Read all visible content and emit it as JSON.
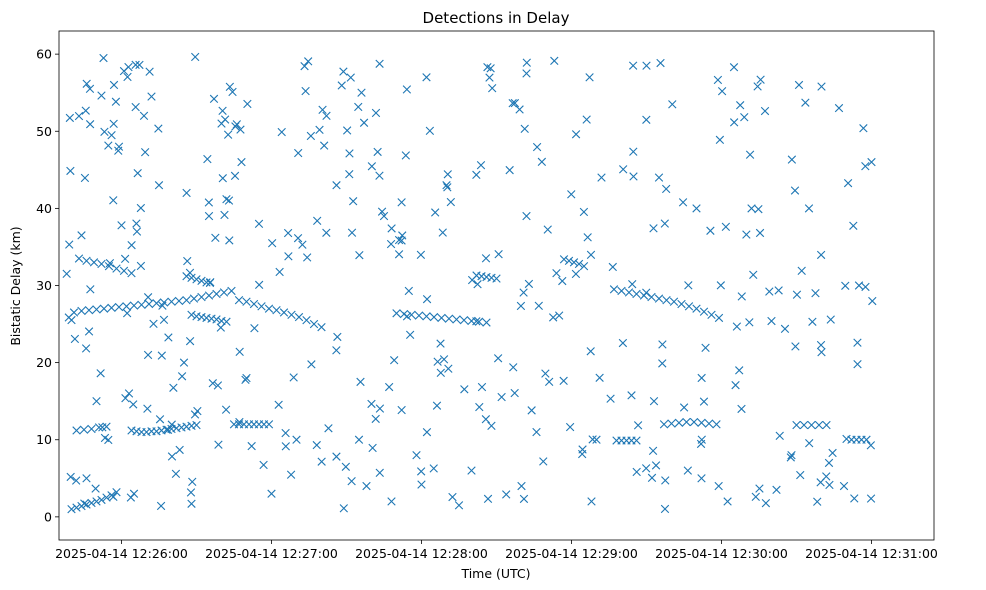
{
  "chart_data": {
    "type": "scatter",
    "title": "Detections in Delay",
    "xlabel": "Time (UTC)",
    "ylabel": "Bistatic Delay (km)",
    "x_unit": "seconds since 2025-04-14 12:26:00",
    "xlim": [
      -25,
      325
    ],
    "ylim": [
      -3,
      63
    ],
    "x_ticks": [
      {
        "value": 0,
        "label": "2025-04-14 12:26:00"
      },
      {
        "value": 60,
        "label": "2025-04-14 12:27:00"
      },
      {
        "value": 120,
        "label": "2025-04-14 12:28:00"
      },
      {
        "value": 180,
        "label": "2025-04-14 12:29:00"
      },
      {
        "value": 240,
        "label": "2025-04-14 12:30:00"
      },
      {
        "value": 300,
        "label": "2025-04-14 12:31:00"
      }
    ],
    "y_ticks": [
      {
        "value": 0,
        "label": "0"
      },
      {
        "value": 10,
        "label": "10"
      },
      {
        "value": 20,
        "label": "20"
      },
      {
        "value": 30,
        "label": "30"
      },
      {
        "value": 40,
        "label": "40"
      },
      {
        "value": 50,
        "label": "50"
      },
      {
        "value": 60,
        "label": "60"
      }
    ],
    "marker": "x",
    "color": "#1f77b4",
    "grid": false,
    "tracks": [
      {
        "name": "track-a",
        "points": [
          [
            -19,
            26.5
          ],
          [
            -16,
            26.7
          ],
          [
            -13,
            26.8
          ],
          [
            -10,
            26.9
          ],
          [
            -7,
            27.0
          ],
          [
            -4,
            27.1
          ],
          [
            -1,
            27.2
          ],
          [
            2,
            27.3
          ],
          [
            5,
            27.4
          ],
          [
            8,
            27.5
          ],
          [
            11,
            27.6
          ],
          [
            14,
            27.7
          ],
          [
            17,
            27.8
          ],
          [
            20,
            27.9
          ],
          [
            23,
            28.0
          ],
          [
            26,
            28.1
          ],
          [
            29,
            28.3
          ],
          [
            32,
            28.5
          ],
          [
            35,
            28.7
          ],
          [
            38,
            28.9
          ],
          [
            41,
            29.1
          ],
          [
            44,
            29.3
          ]
        ]
      },
      {
        "name": "track-b",
        "points": [
          [
            26,
            31.2
          ],
          [
            28,
            31.0
          ],
          [
            30,
            30.8
          ],
          [
            32,
            30.6
          ],
          [
            34,
            30.4
          ]
        ]
      },
      {
        "name": "track-c",
        "points": [
          [
            -17,
            33.5
          ],
          [
            -14,
            33.2
          ],
          [
            -11,
            33.0
          ],
          [
            -8,
            32.8
          ],
          [
            -5,
            32.5
          ],
          [
            -2,
            32.2
          ],
          [
            1,
            31.9
          ],
          [
            4,
            31.6
          ]
        ]
      },
      {
        "name": "track-d",
        "points": [
          [
            28,
            26.2
          ],
          [
            30,
            26.0
          ],
          [
            32,
            25.9
          ],
          [
            34,
            25.8
          ],
          [
            36,
            25.7
          ],
          [
            38,
            25.6
          ],
          [
            40,
            25.4
          ],
          [
            42,
            25.3
          ]
        ]
      },
      {
        "name": "track-e",
        "points": [
          [
            47,
            28.1
          ],
          [
            50,
            27.9
          ],
          [
            53,
            27.6
          ],
          [
            56,
            27.3
          ],
          [
            59,
            27.0
          ],
          [
            62,
            26.8
          ],
          [
            65,
            26.5
          ],
          [
            68,
            26.2
          ],
          [
            71,
            25.9
          ],
          [
            74,
            25.5
          ],
          [
            77,
            25.0
          ],
          [
            80,
            24.6
          ]
        ]
      },
      {
        "name": "track-f",
        "points": [
          [
            110,
            26.4
          ],
          [
            113,
            26.3
          ],
          [
            116,
            26.2
          ],
          [
            119,
            26.1
          ],
          [
            122,
            26.0
          ],
          [
            125,
            25.9
          ],
          [
            128,
            25.8
          ],
          [
            131,
            25.7
          ],
          [
            134,
            25.6
          ],
          [
            137,
            25.5
          ],
          [
            140,
            25.4
          ],
          [
            143,
            25.3
          ],
          [
            146,
            25.2
          ]
        ]
      },
      {
        "name": "track-g",
        "points": [
          [
            142,
            31.3
          ],
          [
            144,
            31.2
          ],
          [
            146,
            31.1
          ],
          [
            148,
            31.0
          ],
          [
            150,
            30.9
          ]
        ]
      },
      {
        "name": "track-h",
        "points": [
          [
            177,
            33.4
          ],
          [
            179,
            33.2
          ],
          [
            181,
            33.0
          ],
          [
            183,
            32.8
          ],
          [
            185,
            32.5
          ]
        ]
      },
      {
        "name": "track-i",
        "points": [
          [
            197,
            29.5
          ],
          [
            200,
            29.3
          ],
          [
            203,
            29.1
          ],
          [
            206,
            28.9
          ],
          [
            209,
            28.7
          ],
          [
            212,
            28.5
          ],
          [
            215,
            28.3
          ],
          [
            218,
            28.1
          ],
          [
            221,
            27.9
          ],
          [
            224,
            27.6
          ],
          [
            227,
            27.3
          ],
          [
            230,
            27.0
          ],
          [
            233,
            26.6
          ],
          [
            236,
            26.2
          ],
          [
            239,
            25.8
          ]
        ]
      },
      {
        "name": "track-j",
        "points": [
          [
            -18,
            11.2
          ],
          [
            -15,
            11.3
          ],
          [
            -12,
            11.4
          ],
          [
            -9,
            11.6
          ],
          [
            -6,
            11.7
          ]
        ]
      },
      {
        "name": "track-k",
        "points": [
          [
            4,
            11.2
          ],
          [
            6,
            11.1
          ],
          [
            8,
            11.0
          ],
          [
            10,
            11.0
          ],
          [
            12,
            11.1
          ],
          [
            14,
            11.1
          ],
          [
            16,
            11.2
          ],
          [
            18,
            11.3
          ],
          [
            20,
            11.4
          ],
          [
            22,
            11.5
          ],
          [
            24,
            11.6
          ],
          [
            26,
            11.7
          ],
          [
            28,
            11.8
          ],
          [
            30,
            11.9
          ]
        ]
      },
      {
        "name": "track-l",
        "points": [
          [
            45,
            12.0
          ],
          [
            47,
            12.0
          ],
          [
            49,
            12.0
          ],
          [
            51,
            12.0
          ],
          [
            53,
            12.0
          ],
          [
            55,
            12.0
          ],
          [
            57,
            12.0
          ],
          [
            59,
            12.0
          ]
        ]
      },
      {
        "name": "track-m",
        "points": [
          [
            198,
            9.9
          ],
          [
            200,
            9.9
          ],
          [
            202,
            9.9
          ],
          [
            204,
            9.9
          ],
          [
            206,
            9.9
          ]
        ]
      },
      {
        "name": "track-n",
        "points": [
          [
            217,
            12.0
          ],
          [
            220,
            12.1
          ],
          [
            223,
            12.2
          ],
          [
            226,
            12.3
          ],
          [
            229,
            12.3
          ],
          [
            232,
            12.2
          ],
          [
            235,
            12.1
          ],
          [
            238,
            12.0
          ]
        ]
      },
      {
        "name": "track-o",
        "points": [
          [
            270,
            11.9
          ],
          [
            273,
            11.9
          ],
          [
            276,
            11.9
          ],
          [
            279,
            11.9
          ],
          [
            282,
            11.9
          ]
        ]
      },
      {
        "name": "track-p",
        "points": [
          [
            290,
            10.1
          ],
          [
            292,
            10.0
          ],
          [
            294,
            10.0
          ],
          [
            296,
            10.0
          ],
          [
            298,
            10.0
          ]
        ]
      },
      {
        "name": "track-q",
        "points": [
          [
            -20,
            1.0
          ],
          [
            -18,
            1.2
          ],
          [
            -16,
            1.4
          ],
          [
            -14,
            1.6
          ],
          [
            -12,
            1.8
          ],
          [
            -10,
            2.0
          ],
          [
            -8,
            2.2
          ],
          [
            -6,
            2.5
          ],
          [
            -4,
            2.8
          ],
          [
            -2,
            3.2
          ]
        ]
      }
    ],
    "scattered": {
      "count": 420,
      "x_range": [
        -22,
        303
      ],
      "y_range": [
        1,
        60
      ],
      "points": [
        [
          -3,
          56
        ],
        [
          1,
          57.8
        ],
        [
          12,
          54.5
        ],
        [
          -1,
          48
        ],
        [
          37,
          54.2
        ],
        [
          9,
          52
        ],
        [
          40,
          51
        ],
        [
          82,
          52
        ],
        [
          96,
          55
        ],
        [
          122,
          57
        ],
        [
          162,
          57.5
        ],
        [
          210,
          58.5
        ],
        [
          245,
          58.3
        ],
        [
          271,
          56
        ],
        [
          280,
          55.8
        ],
        [
          287,
          53
        ],
        [
          300,
          46
        ],
        [
          -16,
          36.5
        ],
        [
          0,
          37.8
        ],
        [
          15,
          43
        ],
        [
          35,
          39
        ],
        [
          55,
          38
        ],
        [
          86,
          43
        ],
        [
          105,
          39
        ],
        [
          130,
          43
        ],
        [
          162,
          39
        ],
        [
          192,
          44
        ],
        [
          215,
          44
        ],
        [
          230,
          40
        ],
        [
          252,
          40
        ],
        [
          275,
          40
        ],
        [
          295,
          30
        ],
        [
          -10,
          15
        ],
        [
          3,
          16
        ],
        [
          25,
          20
        ],
        [
          50,
          18
        ],
        [
          70,
          10
        ],
        [
          95,
          10
        ],
        [
          118,
          8
        ],
        [
          140,
          6
        ],
        [
          166,
          11
        ],
        [
          190,
          10
        ],
        [
          213,
          15
        ],
        [
          248,
          14
        ],
        [
          268,
          8
        ],
        [
          283,
          7
        ],
        [
          -14,
          5
        ],
        [
          5,
          3
        ],
        [
          28,
          1.7
        ],
        [
          60,
          3
        ],
        [
          98,
          4
        ],
        [
          135,
          1.5
        ],
        [
          160,
          4
        ],
        [
          188,
          2
        ],
        [
          232,
          5
        ],
        [
          262,
          3.5
        ],
        [
          289,
          4
        ]
      ]
    }
  }
}
